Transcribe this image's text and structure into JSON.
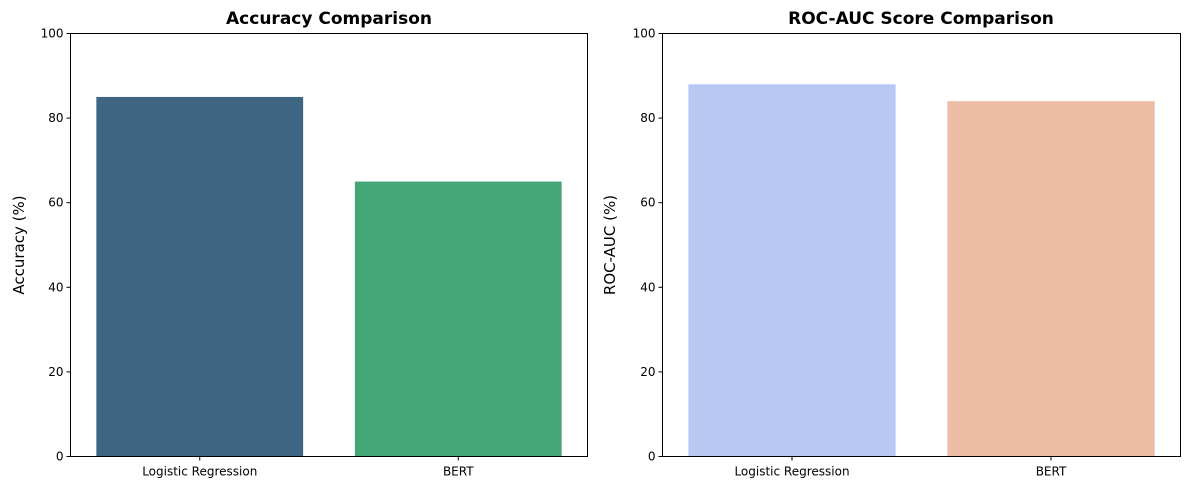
{
  "chart_data": [
    {
      "type": "bar",
      "title": "Accuracy Comparison",
      "xlabel": "",
      "ylabel": "Accuracy (%)",
      "categories": [
        "Logistic Regression",
        "BERT"
      ],
      "values": [
        85,
        65
      ],
      "colors": [
        "#3e6682",
        "#45a778"
      ],
      "ylim": [
        0,
        100
      ],
      "yticks": [
        0,
        20,
        40,
        60,
        80,
        100
      ],
      "grid": false
    },
    {
      "type": "bar",
      "title": "ROC-AUC Score Comparison",
      "xlabel": "",
      "ylabel": "ROC-AUC (%)",
      "categories": [
        "Logistic Regression",
        "BERT"
      ],
      "values": [
        88,
        84
      ],
      "colors": [
        "#b7c9f3",
        "#ecbca5"
      ],
      "ylim": [
        0,
        100
      ],
      "yticks": [
        0,
        20,
        40,
        60,
        80,
        100
      ],
      "grid": false
    }
  ]
}
